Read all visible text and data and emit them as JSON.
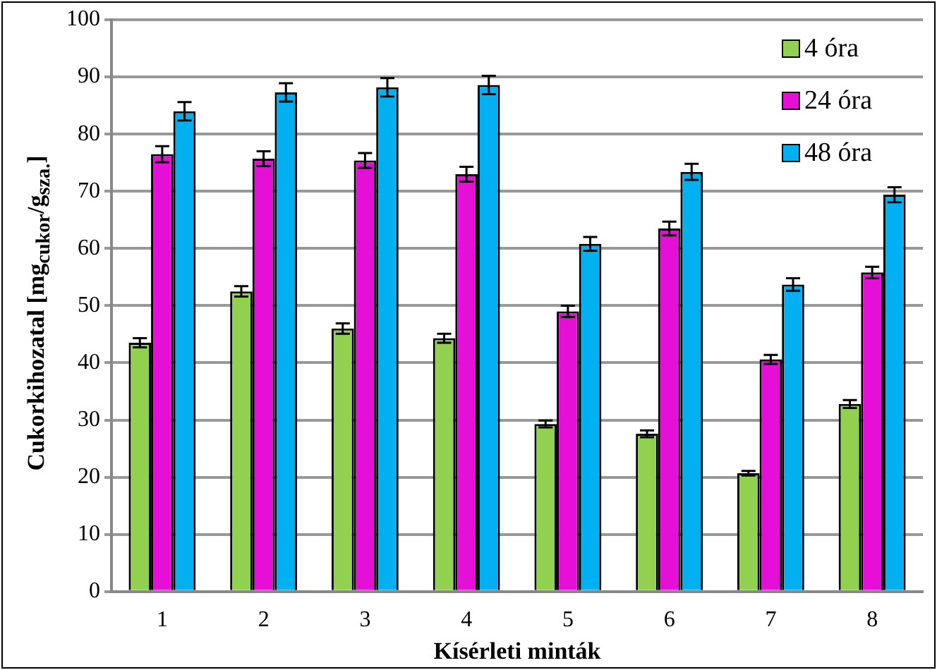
{
  "chart_data": {
    "type": "bar",
    "xlabel": "Kísérleti minták",
    "ylabel": "Cukorkihozatal [mg$_{cukor}$/g$_{sza.}$]",
    "categories": [
      "1",
      "2",
      "3",
      "4",
      "5",
      "6",
      "7",
      "8"
    ],
    "series": [
      {
        "name": "4 óra",
        "color": "#92d050",
        "values": [
          43.5,
          52.5,
          46,
          44.3,
          29.3,
          27.6,
          20.7,
          32.8
        ],
        "errors": [
          0.8,
          0.9,
          0.9,
          0.8,
          0.6,
          0.6,
          0.4,
          0.7
        ]
      },
      {
        "name": "24 óra",
        "color": "#e60fd8",
        "values": [
          76.5,
          75.7,
          75.4,
          73,
          49,
          63.5,
          40.6,
          55.8
        ],
        "errors": [
          1.4,
          1.3,
          1.3,
          1.3,
          1,
          1.2,
          0.8,
          1
        ]
      },
      {
        "name": "48 óra",
        "color": "#00b0f0",
        "values": [
          84,
          87.3,
          88.2,
          88.6,
          60.8,
          73.4,
          53.7,
          69.4
        ],
        "errors": [
          1.6,
          1.6,
          1.6,
          1.6,
          1.2,
          1.4,
          1.1,
          1.3
        ]
      }
    ],
    "ylim": [
      0,
      100
    ],
    "yticks": [
      0,
      10,
      20,
      30,
      40,
      50,
      60,
      70,
      80,
      90,
      100
    ],
    "grid": "y",
    "legend": "top right"
  }
}
